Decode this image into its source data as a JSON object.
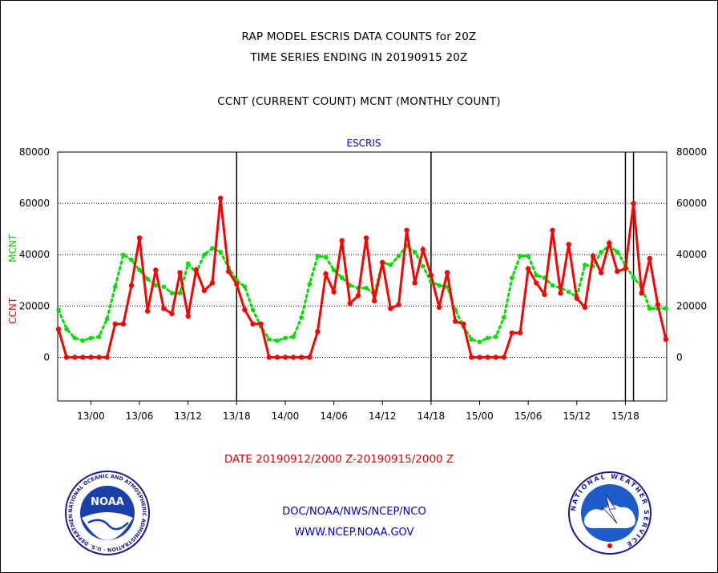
{
  "header": {
    "title_line1": "RAP MODEL ESCRIS DATA COUNTS for 20Z",
    "title_line2": "TIME SERIES ENDING IN 20190915 20Z",
    "subtitle": "CCNT (CURRENT COUNT) MCNT (MONTHLY COUNT)"
  },
  "chart_data": {
    "type": "line",
    "title": "ESCRIS",
    "ylabel_left_series1": "CCNT",
    "ylabel_left_series2": "MCNT",
    "ylim": [
      -17000,
      80000
    ],
    "yticks": [
      0,
      20000,
      40000,
      60000,
      80000
    ],
    "ytick_labels": [
      "0",
      "20000",
      "40000",
      "60000",
      "80000"
    ],
    "xticks": [
      "13/00",
      "13/06",
      "13/12",
      "13/18",
      "14/00",
      "14/06",
      "14/12",
      "14/18",
      "15/00",
      "15/06",
      "15/12",
      "15/18"
    ],
    "x_unit": "hour offset from 12/20Z (hourly)",
    "day_boundaries_hours": [
      22,
      46,
      70,
      71
    ],
    "grid": true,
    "series": [
      {
        "name": "CCNT",
        "color": "#ff0000",
        "values": [
          11000,
          0,
          0,
          0,
          0,
          0,
          0,
          13000,
          13000,
          28000,
          46500,
          18000,
          34000,
          19000,
          17000,
          33000,
          16000,
          34000,
          26000,
          29000,
          62000,
          33500,
          28500,
          18500,
          13000,
          13000,
          0,
          0,
          0,
          0,
          0,
          0,
          10000,
          32500,
          25500,
          45500,
          21000,
          24000,
          46500,
          22000,
          37000,
          19000,
          20500,
          49500,
          29000,
          42000,
          32000,
          19500,
          33000,
          14000,
          13000,
          0,
          0,
          0,
          0,
          0,
          9500,
          9500,
          34500,
          29000,
          24500,
          49500,
          25000,
          44000,
          23000,
          19500,
          39500,
          33000,
          44500,
          33500,
          34500,
          60000,
          25000,
          38500,
          20500,
          7000
        ]
      },
      {
        "name": "MCNT",
        "color": "#00e000",
        "values": [
          18500,
          11000,
          7500,
          6500,
          7500,
          8000,
          15000,
          27500,
          40000,
          38000,
          34000,
          30500,
          28000,
          27500,
          25000,
          25000,
          36500,
          33000,
          40000,
          42500,
          41000,
          35000,
          30000,
          27500,
          18500,
          12000,
          7000,
          6500,
          7500,
          8000,
          15500,
          28500,
          39500,
          39000,
          34000,
          31000,
          28000,
          27000,
          27000,
          24500,
          37000,
          36000,
          39500,
          43500,
          41000,
          35500,
          29500,
          28000,
          27500,
          18500,
          12000,
          7000,
          6000,
          7500,
          8000,
          15500,
          31000,
          39500,
          39500,
          32000,
          31000,
          28000,
          27000,
          25500,
          23500,
          36000,
          35500,
          41000,
          43500,
          41000,
          36000,
          31000,
          27500,
          19000,
          19000,
          19000
        ]
      }
    ]
  },
  "date_range": "DATE 20190912/2000 Z-20190915/2000 Z",
  "footer": {
    "line1": "DOC/NOAA/NWS/NCEP/NCO",
    "line2": "WWW.NCEP.NOAA.GOV"
  },
  "logos": {
    "noaa_label": "NOAA",
    "noaa_ring_text": "NATIONAL OCEANIC AND ATMOSPHERIC ADMINISTRATION · U.S. DEPARTMENT OF COMMERCE",
    "nws_ring_text": "NATIONAL WEATHER SERVICE"
  }
}
